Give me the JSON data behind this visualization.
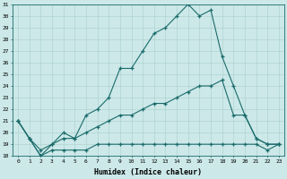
{
  "xlabel": "Humidex (Indice chaleur)",
  "xlim": [
    -0.5,
    23.5
  ],
  "ylim": [
    18,
    31
  ],
  "yticks": [
    18,
    19,
    20,
    21,
    22,
    23,
    24,
    25,
    26,
    27,
    28,
    29,
    30,
    31
  ],
  "xticks": [
    0,
    1,
    2,
    3,
    4,
    5,
    6,
    7,
    8,
    9,
    10,
    11,
    12,
    13,
    14,
    15,
    16,
    17,
    18,
    19,
    20,
    21,
    22,
    23
  ],
  "background_color": "#cce8e8",
  "line_color": "#1a6b6b",
  "grid_color": "#aacece",
  "series": [
    {
      "x": [
        0,
        1,
        2,
        3,
        4,
        5,
        6,
        7,
        8,
        9,
        10,
        11,
        12,
        13,
        14,
        15,
        16,
        17,
        18,
        19,
        20,
        21,
        22,
        23
      ],
      "y": [
        21.0,
        19.5,
        18.0,
        19.0,
        20.0,
        19.5,
        21.5,
        22.0,
        23.0,
        25.5,
        25.5,
        27.0,
        28.5,
        29.0,
        30.0,
        31.0,
        30.0,
        30.5,
        26.5,
        24.0,
        21.5,
        19.5,
        19.0,
        19.0
      ]
    },
    {
      "x": [
        0,
        1,
        2,
        3,
        4,
        5,
        6,
        7,
        8,
        9,
        10,
        11,
        12,
        13,
        14,
        15,
        16,
        17,
        18,
        19,
        20,
        21,
        22,
        23
      ],
      "y": [
        21.0,
        19.5,
        18.5,
        19.0,
        19.5,
        19.5,
        20.0,
        20.5,
        21.0,
        21.5,
        21.5,
        22.0,
        22.5,
        22.5,
        23.0,
        23.5,
        24.0,
        24.0,
        24.5,
        21.5,
        21.5,
        19.5,
        19.0,
        19.0
      ]
    },
    {
      "x": [
        0,
        1,
        2,
        3,
        4,
        5,
        6,
        7,
        8,
        9,
        10,
        11,
        12,
        13,
        14,
        15,
        16,
        17,
        18,
        19,
        20,
        21,
        22,
        23
      ],
      "y": [
        21.0,
        19.5,
        18.0,
        18.5,
        18.5,
        18.5,
        18.5,
        19.0,
        19.0,
        19.0,
        19.0,
        19.0,
        19.0,
        19.0,
        19.0,
        19.0,
        19.0,
        19.0,
        19.0,
        19.0,
        19.0,
        19.0,
        18.5,
        19.0
      ]
    }
  ]
}
